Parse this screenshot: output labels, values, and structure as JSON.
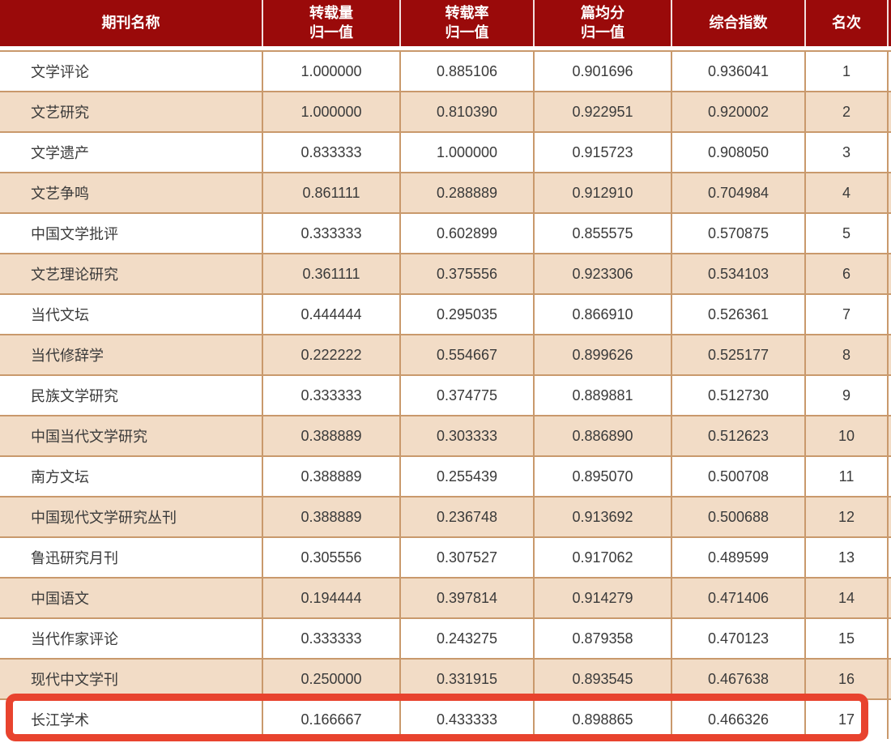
{
  "colors": {
    "header_bg": "#9a0a0a",
    "header_text": "#ffffff",
    "header_divider": "#f2dede",
    "row_bg": "#ffffff",
    "row_alt_bg": "#f2dcc6",
    "grid_border": "#c9996c",
    "body_text": "#3a3a3a",
    "highlight_border": "#e8432e"
  },
  "table": {
    "header_labels": [
      "期刊名称",
      "转载量\n归一值",
      "转载率\n归一值",
      "篇均分\n归一值",
      "综合指数",
      "名次"
    ],
    "rows": [
      {
        "journal": "文学评论",
        "reprint_volume_norm": "1.000000",
        "reprint_rate_norm": "0.885106",
        "per_article_score_norm": "0.901696",
        "composite_index": "0.936041",
        "rank": "1",
        "highlighted": false
      },
      {
        "journal": "文艺研究",
        "reprint_volume_norm": "1.000000",
        "reprint_rate_norm": "0.810390",
        "per_article_score_norm": "0.922951",
        "composite_index": "0.920002",
        "rank": "2",
        "highlighted": false
      },
      {
        "journal": "文学遗产",
        "reprint_volume_norm": "0.833333",
        "reprint_rate_norm": "1.000000",
        "per_article_score_norm": "0.915723",
        "composite_index": "0.908050",
        "rank": "3",
        "highlighted": false
      },
      {
        "journal": "文艺争鸣",
        "reprint_volume_norm": "0.861111",
        "reprint_rate_norm": "0.288889",
        "per_article_score_norm": "0.912910",
        "composite_index": "0.704984",
        "rank": "4",
        "highlighted": false
      },
      {
        "journal": "中国文学批评",
        "reprint_volume_norm": "0.333333",
        "reprint_rate_norm": "0.602899",
        "per_article_score_norm": "0.855575",
        "composite_index": "0.570875",
        "rank": "5",
        "highlighted": false
      },
      {
        "journal": "文艺理论研究",
        "reprint_volume_norm": "0.361111",
        "reprint_rate_norm": "0.375556",
        "per_article_score_norm": "0.923306",
        "composite_index": "0.534103",
        "rank": "6",
        "highlighted": false
      },
      {
        "journal": "当代文坛",
        "reprint_volume_norm": "0.444444",
        "reprint_rate_norm": "0.295035",
        "per_article_score_norm": "0.866910",
        "composite_index": "0.526361",
        "rank": "7",
        "highlighted": false
      },
      {
        "journal": "当代修辞学",
        "reprint_volume_norm": "0.222222",
        "reprint_rate_norm": "0.554667",
        "per_article_score_norm": "0.899626",
        "composite_index": "0.525177",
        "rank": "8",
        "highlighted": false
      },
      {
        "journal": "民族文学研究",
        "reprint_volume_norm": "0.333333",
        "reprint_rate_norm": "0.374775",
        "per_article_score_norm": "0.889881",
        "composite_index": "0.512730",
        "rank": "9",
        "highlighted": false
      },
      {
        "journal": "中国当代文学研究",
        "reprint_volume_norm": "0.388889",
        "reprint_rate_norm": "0.303333",
        "per_article_score_norm": "0.886890",
        "composite_index": "0.512623",
        "rank": "10",
        "highlighted": false
      },
      {
        "journal": "南方文坛",
        "reprint_volume_norm": "0.388889",
        "reprint_rate_norm": "0.255439",
        "per_article_score_norm": "0.895070",
        "composite_index": "0.500708",
        "rank": "11",
        "highlighted": false
      },
      {
        "journal": "中国现代文学研究丛刊",
        "reprint_volume_norm": "0.388889",
        "reprint_rate_norm": "0.236748",
        "per_article_score_norm": "0.913692",
        "composite_index": "0.500688",
        "rank": "12",
        "highlighted": false
      },
      {
        "journal": "鲁迅研究月刊",
        "reprint_volume_norm": "0.305556",
        "reprint_rate_norm": "0.307527",
        "per_article_score_norm": "0.917062",
        "composite_index": "0.489599",
        "rank": "13",
        "highlighted": false
      },
      {
        "journal": "中国语文",
        "reprint_volume_norm": "0.194444",
        "reprint_rate_norm": "0.397814",
        "per_article_score_norm": "0.914279",
        "composite_index": "0.471406",
        "rank": "14",
        "highlighted": false
      },
      {
        "journal": "当代作家评论",
        "reprint_volume_norm": "0.333333",
        "reprint_rate_norm": "0.243275",
        "per_article_score_norm": "0.879358",
        "composite_index": "0.470123",
        "rank": "15",
        "highlighted": false
      },
      {
        "journal": "现代中文学刊",
        "reprint_volume_norm": "0.250000",
        "reprint_rate_norm": "0.331915",
        "per_article_score_norm": "0.893545",
        "composite_index": "0.467638",
        "rank": "16",
        "highlighted": false
      },
      {
        "journal": "长江学术",
        "reprint_volume_norm": "0.166667",
        "reprint_rate_norm": "0.433333",
        "per_article_score_norm": "0.898865",
        "composite_index": "0.466326",
        "rank": "17",
        "highlighted": true
      }
    ]
  },
  "chart_data": {
    "type": "table",
    "title": "",
    "columns": [
      "期刊名称",
      "转载量归一值",
      "转载率归一值",
      "篇均分归一值",
      "综合指数",
      "名次"
    ],
    "rows": [
      [
        "文学评论",
        "1.000000",
        "0.885106",
        "0.901696",
        "0.936041",
        "1"
      ],
      [
        "文艺研究",
        "1.000000",
        "0.810390",
        "0.922951",
        "0.920002",
        "2"
      ],
      [
        "文学遗产",
        "0.833333",
        "1.000000",
        "0.915723",
        "0.908050",
        "3"
      ],
      [
        "文艺争鸣",
        "0.861111",
        "0.288889",
        "0.912910",
        "0.704984",
        "4"
      ],
      [
        "中国文学批评",
        "0.333333",
        "0.602899",
        "0.855575",
        "0.570875",
        "5"
      ],
      [
        "文艺理论研究",
        "0.361111",
        "0.375556",
        "0.923306",
        "0.534103",
        "6"
      ],
      [
        "当代文坛",
        "0.444444",
        "0.295035",
        "0.866910",
        "0.526361",
        "7"
      ],
      [
        "当代修辞学",
        "0.222222",
        "0.554667",
        "0.899626",
        "0.525177",
        "8"
      ],
      [
        "民族文学研究",
        "0.333333",
        "0.374775",
        "0.889881",
        "0.512730",
        "9"
      ],
      [
        "中国当代文学研究",
        "0.388889",
        "0.303333",
        "0.886890",
        "0.512623",
        "10"
      ],
      [
        "南方文坛",
        "0.388889",
        "0.255439",
        "0.895070",
        "0.500708",
        "11"
      ],
      [
        "中国现代文学研究丛刊",
        "0.388889",
        "0.236748",
        "0.913692",
        "0.500688",
        "12"
      ],
      [
        "鲁迅研究月刊",
        "0.305556",
        "0.307527",
        "0.917062",
        "0.489599",
        "13"
      ],
      [
        "中国语文",
        "0.194444",
        "0.397814",
        "0.914279",
        "0.471406",
        "14"
      ],
      [
        "当代作家评论",
        "0.333333",
        "0.243275",
        "0.879358",
        "0.470123",
        "15"
      ],
      [
        "现代中文学刊",
        "0.250000",
        "0.331915",
        "0.893545",
        "0.467638",
        "16"
      ],
      [
        "长江学术",
        "0.166667",
        "0.433333",
        "0.898865",
        "0.466326",
        "17"
      ]
    ],
    "highlighted_row": {
      "journal": "长江学术",
      "rank": "17",
      "highlight_color": "#e8432e"
    },
    "layout": {
      "alternating_row_colors": true,
      "header_color": "#9a0a0a",
      "grid": true
    }
  }
}
